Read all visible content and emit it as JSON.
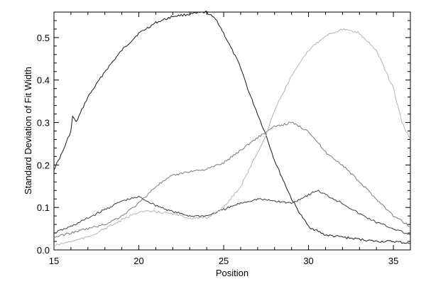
{
  "chart_data": {
    "type": "line",
    "title": "",
    "xlabel": "Position",
    "ylabel": "Standard Deviation of Fit Width",
    "xlim": [
      15,
      36
    ],
    "ylim": [
      0.0,
      0.56
    ],
    "xticks": [
      15,
      20,
      25,
      30,
      35
    ],
    "xtick_labels": [
      "15",
      "20",
      "25",
      "30",
      "35"
    ],
    "yticks": [
      0.0,
      0.1,
      0.2,
      0.3,
      0.4,
      0.5
    ],
    "ytick_labels": [
      "0.0",
      "0.1",
      "0.2",
      "0.3",
      "0.4",
      "0.5"
    ],
    "grid": false,
    "legend": "none",
    "series": [
      {
        "color": "#1a1a1a",
        "x": [
          15.0,
          15.5,
          16.0,
          16.1,
          16.3,
          17.0,
          18.0,
          19.0,
          20.0,
          21.0,
          22.0,
          23.0,
          24.0,
          24.6,
          25.0,
          25.5,
          26.0,
          26.5,
          27.0,
          27.5,
          28.0,
          28.5,
          29.0,
          29.5,
          30.0,
          31.0,
          32.0,
          33.0,
          34.0,
          35.0,
          36.0
        ],
        "values": [
          0.19,
          0.23,
          0.28,
          0.315,
          0.3,
          0.36,
          0.42,
          0.47,
          0.51,
          0.535,
          0.55,
          0.555,
          0.56,
          0.54,
          0.51,
          0.47,
          0.43,
          0.37,
          0.32,
          0.27,
          0.21,
          0.165,
          0.12,
          0.085,
          0.055,
          0.035,
          0.03,
          0.025,
          0.02,
          0.02,
          0.015
        ]
      },
      {
        "color": "#3c3c3c",
        "x": [
          15.0,
          16.0,
          17.0,
          18.0,
          19.0,
          20.0,
          21.0,
          22.0,
          23.0,
          24.0,
          25.0,
          26.0,
          27.0,
          28.0,
          29.0,
          30.0,
          30.5,
          31.0,
          32.0,
          33.0,
          34.0,
          35.0,
          36.0
        ],
        "values": [
          0.04,
          0.055,
          0.075,
          0.095,
          0.115,
          0.125,
          0.105,
          0.09,
          0.08,
          0.08,
          0.095,
          0.11,
          0.12,
          0.115,
          0.11,
          0.13,
          0.14,
          0.13,
          0.11,
          0.085,
          0.065,
          0.05,
          0.035
        ]
      },
      {
        "color": "#7a7a7a",
        "x": [
          15.0,
          16.0,
          17.0,
          18.0,
          19.0,
          20.0,
          21.0,
          22.0,
          23.0,
          24.0,
          25.0,
          26.0,
          27.0,
          28.0,
          29.0,
          30.0,
          31.0,
          32.0,
          33.0,
          34.0,
          35.0,
          36.0
        ],
        "values": [
          0.03,
          0.04,
          0.05,
          0.06,
          0.08,
          0.11,
          0.15,
          0.175,
          0.185,
          0.19,
          0.205,
          0.235,
          0.265,
          0.29,
          0.3,
          0.28,
          0.23,
          0.2,
          0.16,
          0.12,
          0.08,
          0.055
        ]
      },
      {
        "color": "#b4b4b4",
        "x": [
          15.0,
          16.0,
          17.0,
          18.0,
          19.0,
          20.0,
          21.0,
          22.0,
          23.0,
          24.0,
          25.0,
          26.0,
          26.5,
          27.0,
          27.5,
          28.0,
          29.0,
          30.0,
          31.0,
          32.0,
          33.0,
          34.0,
          35.0,
          35.5,
          36.0
        ],
        "values": [
          0.01,
          0.02,
          0.03,
          0.05,
          0.07,
          0.09,
          0.09,
          0.085,
          0.075,
          0.075,
          0.1,
          0.15,
          0.19,
          0.23,
          0.27,
          0.33,
          0.41,
          0.47,
          0.505,
          0.52,
          0.51,
          0.47,
          0.38,
          0.3,
          0.26
        ]
      }
    ]
  }
}
